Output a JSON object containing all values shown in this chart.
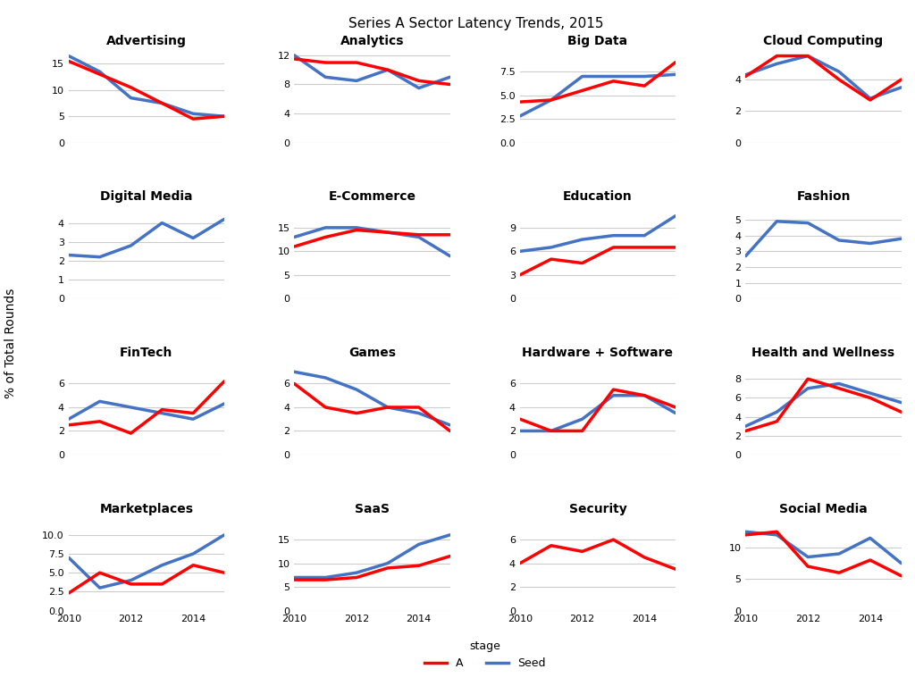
{
  "title": "Series A Sector Latency Trends, 2015",
  "ylabel": "% of Total Rounds",
  "x": [
    2010,
    2011,
    2012,
    2013,
    2014,
    2015
  ],
  "xticks": [
    2010,
    2012,
    2014
  ],
  "sectors": [
    {
      "name": "Advertising",
      "seed": [
        16.5,
        13.5,
        8.5,
        7.5,
        5.5,
        5.0
      ],
      "a": [
        15.5,
        13.0,
        10.5,
        7.5,
        4.5,
        5.0
      ],
      "ylim": [
        0,
        18
      ],
      "yticks": [
        0,
        5,
        10,
        15
      ]
    },
    {
      "name": "Analytics",
      "seed": [
        12.0,
        9.0,
        8.5,
        10.0,
        7.5,
        9.0
      ],
      "a": [
        11.5,
        11.0,
        11.0,
        10.0,
        8.5,
        8.0
      ],
      "ylim": [
        0,
        13
      ],
      "yticks": [
        0,
        4,
        8,
        12
      ]
    },
    {
      "name": "Big Data",
      "seed": [
        2.8,
        4.5,
        7.0,
        7.0,
        7.0,
        7.2
      ],
      "a": [
        4.3,
        4.5,
        5.5,
        6.5,
        6.0,
        8.5
      ],
      "ylim": [
        0.0,
        10.0
      ],
      "yticks": [
        0.0,
        2.5,
        5.0,
        7.5
      ]
    },
    {
      "name": "Cloud Computing",
      "seed": [
        4.3,
        5.0,
        5.5,
        4.5,
        2.8,
        3.5
      ],
      "a": [
        4.2,
        5.5,
        5.5,
        4.0,
        2.7,
        4.0
      ],
      "ylim": [
        0,
        6
      ],
      "yticks": [
        0,
        2,
        4
      ]
    },
    {
      "name": "Digital Media",
      "seed": [
        2.3,
        2.2,
        2.8,
        4.0,
        3.2,
        4.2
      ],
      "a": [
        null,
        null,
        null,
        null,
        null,
        null
      ],
      "ylim": [
        0,
        5
      ],
      "yticks": [
        0,
        1,
        2,
        3,
        4
      ]
    },
    {
      "name": "E-Commerce",
      "seed": [
        13.0,
        15.0,
        15.0,
        14.0,
        13.0,
        9.0
      ],
      "a": [
        11.0,
        13.0,
        14.5,
        14.0,
        13.5,
        13.5
      ],
      "ylim": [
        0,
        20
      ],
      "yticks": [
        0,
        5,
        10,
        15
      ]
    },
    {
      "name": "Education",
      "seed": [
        6.0,
        6.5,
        7.5,
        8.0,
        8.0,
        10.5
      ],
      "a": [
        3.0,
        5.0,
        4.5,
        6.5,
        6.5,
        6.5
      ],
      "ylim": [
        0,
        12
      ],
      "yticks": [
        0,
        3,
        6,
        9
      ]
    },
    {
      "name": "Fashion",
      "seed": [
        2.7,
        4.9,
        4.8,
        3.7,
        3.5,
        3.8
      ],
      "a": [
        null,
        null,
        null,
        null,
        null,
        null
      ],
      "ylim": [
        0,
        6
      ],
      "yticks": [
        0,
        1,
        2,
        3,
        4,
        5
      ]
    },
    {
      "name": "FinTech",
      "seed": [
        3.0,
        4.5,
        4.0,
        3.5,
        3.0,
        4.3
      ],
      "a": [
        2.5,
        2.8,
        1.8,
        3.8,
        3.5,
        6.2
      ],
      "ylim": [
        0,
        8
      ],
      "yticks": [
        0,
        2,
        4,
        6
      ]
    },
    {
      "name": "Games",
      "seed": [
        7.0,
        6.5,
        5.5,
        4.0,
        3.5,
        2.5
      ],
      "a": [
        6.0,
        4.0,
        3.5,
        4.0,
        4.0,
        2.0
      ],
      "ylim": [
        0,
        8
      ],
      "yticks": [
        0,
        2,
        4,
        6
      ]
    },
    {
      "name": "Hardware + Software",
      "seed": [
        2.0,
        2.0,
        3.0,
        5.0,
        5.0,
        3.5
      ],
      "a": [
        3.0,
        2.0,
        2.0,
        5.5,
        5.0,
        4.0
      ],
      "ylim": [
        0,
        8
      ],
      "yticks": [
        0,
        2,
        4,
        6
      ]
    },
    {
      "name": "Health and Wellness",
      "seed": [
        3.0,
        4.5,
        7.0,
        7.5,
        6.5,
        5.5
      ],
      "a": [
        2.5,
        3.5,
        8.0,
        7.0,
        6.0,
        4.5
      ],
      "ylim": [
        0,
        10
      ],
      "yticks": [
        0,
        2,
        4,
        6,
        8
      ]
    },
    {
      "name": "Marketplaces",
      "seed": [
        7.0,
        3.0,
        4.0,
        6.0,
        7.5,
        10.0
      ],
      "a": [
        2.3,
        5.0,
        3.5,
        3.5,
        6.0,
        5.0
      ],
      "ylim": [
        0.0,
        12.5
      ],
      "yticks": [
        0.0,
        2.5,
        5.0,
        7.5,
        10.0
      ]
    },
    {
      "name": "SaaS",
      "seed": [
        7.0,
        7.0,
        8.0,
        10.0,
        14.0,
        16.0
      ],
      "a": [
        6.5,
        6.5,
        7.0,
        9.0,
        9.5,
        11.5
      ],
      "ylim": [
        0,
        20
      ],
      "yticks": [
        0,
        5,
        10,
        15
      ]
    },
    {
      "name": "Security",
      "seed": [
        null,
        null,
        null,
        null,
        null,
        null
      ],
      "a": [
        4.0,
        5.5,
        5.0,
        6.0,
        4.5,
        3.5
      ],
      "ylim": [
        0,
        8
      ],
      "yticks": [
        0,
        2,
        4,
        6
      ]
    },
    {
      "name": "Social Media",
      "seed": [
        12.5,
        12.0,
        8.5,
        9.0,
        11.5,
        7.5
      ],
      "a": [
        12.0,
        12.5,
        7.0,
        6.0,
        8.0,
        5.5
      ],
      "ylim": [
        0,
        15
      ],
      "yticks": [
        0,
        5,
        10
      ]
    }
  ],
  "color_seed": "#4472C4",
  "color_a": "#FF0000",
  "line_width": 2.5,
  "background_color": "#FFFFFF",
  "grid_color": "#CCCCCC",
  "title_fontsize": 11,
  "subplot_title_fontsize": 10,
  "tick_fontsize": 8,
  "ylabel_fontsize": 10
}
